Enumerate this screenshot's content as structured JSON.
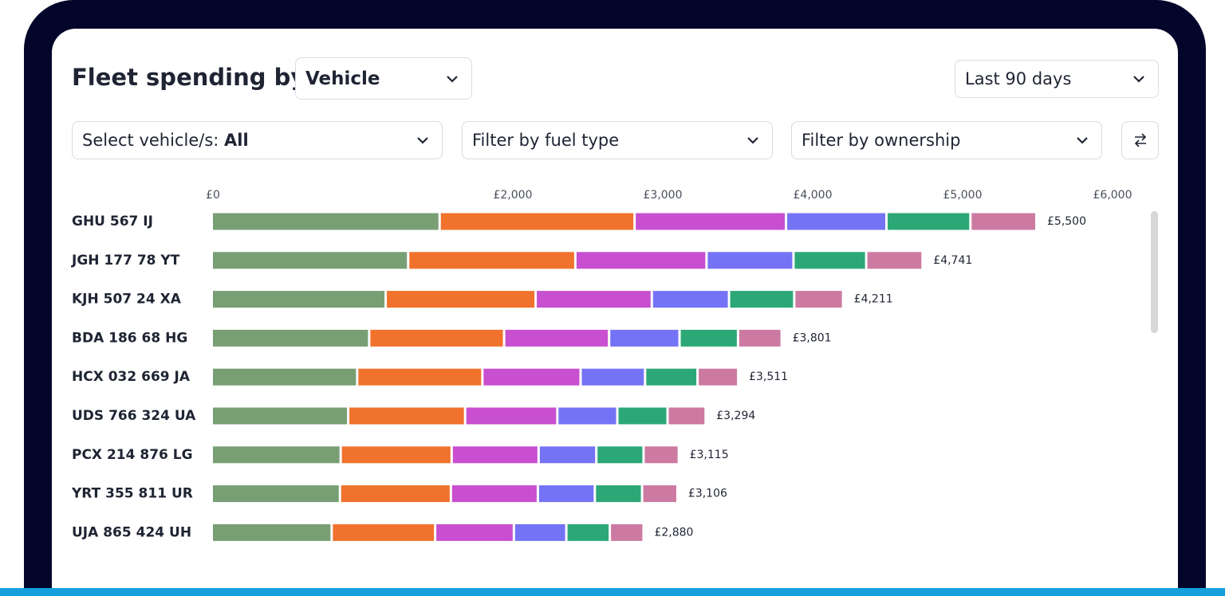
{
  "header": {
    "title": "Fleet spending by",
    "group_by": "Vehicle",
    "period": "Last 90 days"
  },
  "filters": {
    "vehicle_label": "Select vehicle/s:",
    "vehicle_value": "All",
    "fuel_type": "Filter by fuel type",
    "ownership": "Filter by ownership"
  },
  "chart_data": {
    "type": "bar",
    "orientation": "horizontal",
    "stacked": true,
    "categories": [
      "GHU 567 IJ",
      "JGH 177 78 YT",
      "KJH 507 24 XA",
      "BDA 186 68 HG",
      "HCX 032 669 JA",
      "UDS 766 324 UA",
      "PCX 214 876 LG",
      "YRT 355 811 UR",
      "UJA 865 424 UH"
    ],
    "series": [
      {
        "color": "#789f74",
        "values": [
          1520,
          1310,
          1160,
          1050,
          970,
          910,
          860,
          855,
          800
        ]
      },
      {
        "color": "#f0722c",
        "values": [
          1300,
          1115,
          1000,
          900,
          835,
          780,
          740,
          740,
          690
        ]
      },
      {
        "color": "#c84fd0",
        "values": [
          1010,
          875,
          775,
          700,
          655,
          615,
          580,
          580,
          525
        ]
      },
      {
        "color": "#7573f5",
        "values": [
          670,
          580,
          515,
          470,
          430,
          400,
          385,
          380,
          350
        ]
      },
      {
        "color": "#2ca877",
        "values": [
          560,
          485,
          435,
          390,
          350,
          335,
          315,
          315,
          290
        ]
      },
      {
        "color": "#cc7aa1",
        "values": [
          440,
          376,
          326,
          291,
          271,
          254,
          235,
          236,
          225
        ]
      }
    ],
    "totals": {
      "values": [
        5500,
        4741,
        4211,
        3801,
        3511,
        3294,
        3115,
        3106,
        2880
      ],
      "value_labels": [
        "£5,500",
        "£4,741",
        "£4,211",
        "£3,801",
        "£3,511",
        "£3,294",
        "£3,115",
        "£3,106",
        "£2,880"
      ]
    },
    "xlim": [
      0,
      6000
    ],
    "xticks": [
      {
        "value": 0,
        "label": "£0"
      },
      {
        "value": 2000,
        "label": "£2,000"
      },
      {
        "value": 3000,
        "label": "£3,000"
      },
      {
        "value": 4000,
        "label": "£4,000"
      },
      {
        "value": 5000,
        "label": "£5,000"
      },
      {
        "value": 6000,
        "label": "£6,000"
      }
    ]
  }
}
